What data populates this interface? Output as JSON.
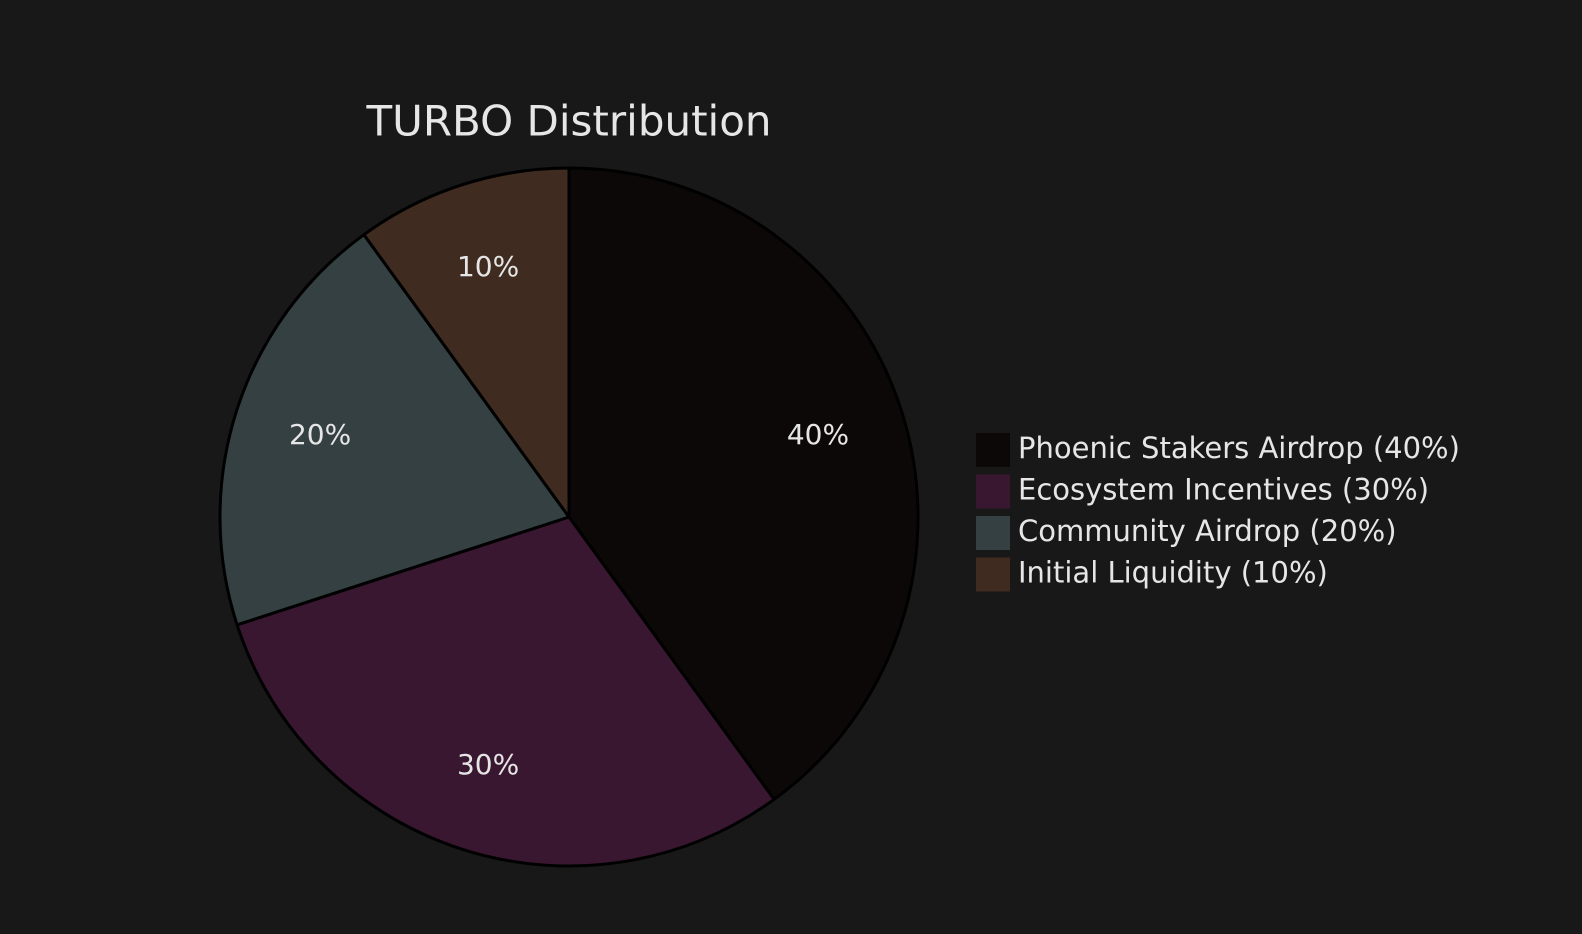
{
  "chart_data": {
    "type": "pie",
    "title": "TURBO Distribution",
    "categories": [
      "Phoenic Stakers Airdrop (40%)",
      "Ecosystem Incentives (30%)",
      "Community Airdrop (20%)",
      "Initial Liquidity (10%)"
    ],
    "values": [
      40,
      30,
      20,
      10
    ],
    "value_labels": [
      "40%",
      "30%",
      "20%",
      "10%"
    ],
    "colors": [
      "#0d0808",
      "#3a1730",
      "#354043",
      "#3f2b20"
    ],
    "legend": "right"
  }
}
